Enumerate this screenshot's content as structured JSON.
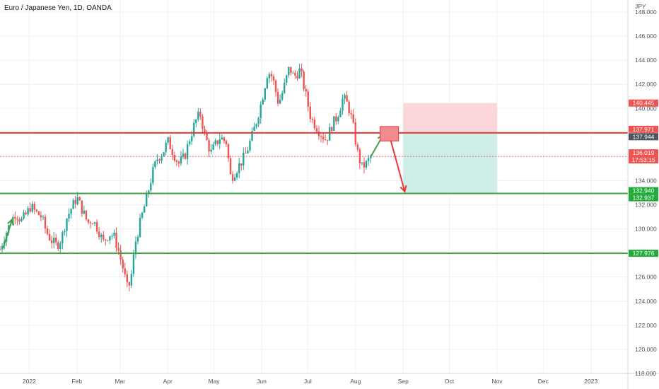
{
  "header": {
    "title": "Euro / Japanese Yen, 1D, OANDA"
  },
  "axis": {
    "currency": "JPY"
  },
  "colors": {
    "up": "#26a69a",
    "down": "#ef5350",
    "grid": "#eef0f3",
    "red_line": "#e53935",
    "green_line": "#43a047",
    "target_zone": "#cfeee8",
    "stop_zone": "#fcd7da",
    "label_red": "#ef5350",
    "label_green": "#22ab3a",
    "label_grey": "#4c525e"
  },
  "chart_data": {
    "type": "candlestick",
    "title": "Euro / Japanese Yen, 1D, OANDA",
    "ylim": [
      118,
      149
    ],
    "ytick_values": [
      118,
      120,
      122,
      124,
      126,
      128,
      130,
      132,
      134,
      136,
      138,
      140,
      142,
      144,
      146,
      148
    ],
    "ytick_labels": [
      "118.000",
      "120.000",
      "122.000",
      "124.000",
      "126.000",
      "128.000",
      "130.000",
      "132.000",
      "134.000",
      "136.000",
      "138.000",
      "140.000",
      "142.000",
      "144.000",
      "146.000",
      "148.000"
    ],
    "xtick_labels": [
      "2022",
      "Feb",
      "Mar",
      "Apr",
      "May",
      "Jun",
      "Jul",
      "Aug",
      "Sep",
      "Oct",
      "Nov",
      "Dec",
      "2023"
    ],
    "xtick_days": [
      0,
      31,
      59,
      90,
      120,
      151,
      181,
      212,
      243,
      273,
      304,
      334,
      365
    ],
    "x_range_days": [
      -19,
      389
    ],
    "candle_path": [
      [
        -19,
        128.3
      ],
      [
        -16,
        129.4
      ],
      [
        -12,
        130.6
      ],
      [
        -9,
        131.3
      ],
      [
        -5,
        130.7
      ],
      [
        -2,
        131.2
      ],
      [
        1,
        131.9
      ],
      [
        4,
        131.4
      ],
      [
        8,
        131.0
      ],
      [
        11,
        129.8
      ],
      [
        14,
        129.1
      ],
      [
        18,
        128.6
      ],
      [
        21,
        129.2
      ],
      [
        24,
        130.8
      ],
      [
        28,
        131.9
      ],
      [
        31,
        132.6
      ],
      [
        35,
        131.4
      ],
      [
        38,
        130.5
      ],
      [
        41,
        130.8
      ],
      [
        45,
        129.9
      ],
      [
        48,
        128.9
      ],
      [
        52,
        129.6
      ],
      [
        55,
        129.4
      ],
      [
        58,
        128.2
      ],
      [
        61,
        126.7
      ],
      [
        64,
        124.9
      ],
      [
        66,
        125.8
      ],
      [
        69,
        128.9
      ],
      [
        73,
        131.0
      ],
      [
        76,
        132.4
      ],
      [
        80,
        134.6
      ],
      [
        83,
        135.8
      ],
      [
        87,
        136.4
      ],
      [
        90,
        137.3
      ],
      [
        94,
        136.2
      ],
      [
        97,
        135.4
      ],
      [
        101,
        136.0
      ],
      [
        104,
        137.4
      ],
      [
        108,
        138.9
      ],
      [
        111,
        139.6
      ],
      [
        114,
        137.8
      ],
      [
        118,
        136.3
      ],
      [
        121,
        137.0
      ],
      [
        124,
        137.6
      ],
      [
        128,
        137.2
      ],
      [
        131,
        134.2
      ],
      [
        134,
        134.8
      ],
      [
        138,
        135.6
      ],
      [
        141,
        136.3
      ],
      [
        145,
        137.8
      ],
      [
        148,
        139.1
      ],
      [
        151,
        140.6
      ],
      [
        155,
        143.1
      ],
      [
        158,
        142.6
      ],
      [
        162,
        140.4
      ],
      [
        165,
        141.5
      ],
      [
        169,
        143.4
      ],
      [
        172,
        142.6
      ],
      [
        176,
        143.2
      ],
      [
        179,
        141.5
      ],
      [
        183,
        139.2
      ],
      [
        186,
        138.6
      ],
      [
        190,
        137.8
      ],
      [
        193,
        137.4
      ],
      [
        197,
        138.7
      ],
      [
        200,
        139.3
      ],
      [
        204,
        140.9
      ],
      [
        207,
        140.3
      ],
      [
        210,
        138.9
      ],
      [
        213,
        136.5
      ],
      [
        216,
        135.1
      ],
      [
        219,
        135.4
      ],
      [
        222,
        136.0
      ]
    ],
    "levels": [
      {
        "name": "entry",
        "value": 137.971,
        "label": "137.971"
      },
      {
        "name": "stop",
        "value": 140.445,
        "label": "140.445"
      },
      {
        "name": "target",
        "value": 132.94,
        "label": "132.940"
      },
      {
        "name": "support",
        "value": 127.976,
        "label": "127.976"
      }
    ],
    "price_labels": [
      {
        "name": "entry-level",
        "value": 137.971,
        "text": "137.971",
        "color": "label_red"
      },
      {
        "name": "red-line",
        "value": 137.944,
        "text": "137.944",
        "color": "label_grey"
      },
      {
        "name": "current-price",
        "value": 136.019,
        "text": "136.019",
        "sub": "17:53:15",
        "color": "label_red"
      },
      {
        "name": "target-line",
        "value": 132.94,
        "text": "132.940",
        "color": "label_green"
      },
      {
        "name": "target-level",
        "value": 132.937,
        "text": "132.937",
        "color": "label_green"
      },
      {
        "name": "support-line",
        "value": 127.976,
        "text": "127.976",
        "color": "label_green"
      },
      {
        "name": "stop-level",
        "value": 140.445,
        "text": "140.445",
        "color": "label_red"
      }
    ],
    "position": {
      "start_day": 243,
      "end_day": 304,
      "entry": 137.971,
      "stop": 140.445,
      "target": 132.94
    },
    "grid": true
  }
}
